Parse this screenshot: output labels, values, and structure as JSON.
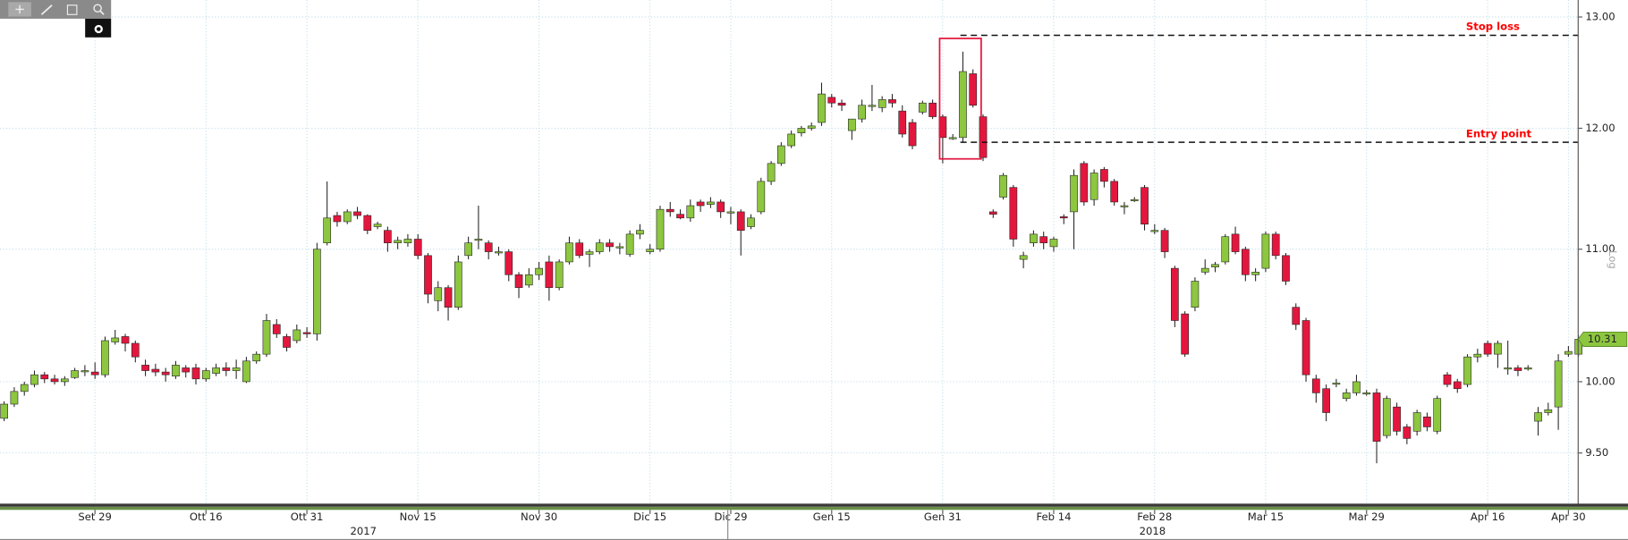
{
  "chart_data": {
    "type": "candlestick",
    "log_scale": true,
    "scale_label": "Log",
    "grid": true,
    "up_color": "#8dc63f",
    "down_color": "#e3173e",
    "annotation_color": "#ff0000",
    "ylim": [
      9.16,
      13.16
    ],
    "yticks": [
      {
        "value": 9.5,
        "label": "9.50"
      },
      {
        "value": 10,
        "label": "10.00"
      },
      {
        "value": 11,
        "label": "11.00"
      },
      {
        "value": 12,
        "label": "12.00"
      },
      {
        "value": 13,
        "label": "13.00"
      }
    ],
    "years": [
      "2017",
      "2018"
    ],
    "annotations": [
      {
        "text": "Stop loss",
        "value": 12.83
      },
      {
        "text": "Entry point",
        "value": 11.88
      }
    ],
    "categories": [
      null,
      null,
      null,
      null,
      null,
      null,
      null,
      null,
      null,
      "Set 29",
      null,
      null,
      null,
      null,
      null,
      null,
      null,
      null,
      null,
      null,
      "Ott 16",
      null,
      null,
      null,
      null,
      null,
      null,
      null,
      null,
      null,
      "Ott 31",
      null,
      null,
      null,
      null,
      null,
      null,
      null,
      null,
      null,
      null,
      "Nov 15",
      null,
      null,
      null,
      null,
      null,
      null,
      null,
      null,
      null,
      null,
      null,
      "Nov 30",
      null,
      null,
      null,
      null,
      null,
      null,
      null,
      null,
      null,
      null,
      "Dic 15",
      null,
      null,
      null,
      null,
      null,
      null,
      null,
      "Dic 29",
      null,
      null,
      null,
      null,
      null,
      null,
      null,
      null,
      null,
      "Gen 15",
      null,
      null,
      null,
      null,
      null,
      null,
      null,
      null,
      null,
      null,
      "Gen 31",
      null,
      null,
      null,
      null,
      null,
      null,
      null,
      null,
      null,
      null,
      "Feb 14",
      null,
      null,
      null,
      null,
      null,
      null,
      null,
      null,
      null,
      "Feb 28",
      null,
      null,
      null,
      null,
      null,
      null,
      null,
      null,
      null,
      null,
      "Mar 15",
      null,
      null,
      null,
      null,
      null,
      null,
      null,
      null,
      null,
      "Mar 29",
      null,
      null,
      null,
      null,
      null,
      null,
      null,
      null,
      null,
      null,
      null,
      "Apr 16",
      null,
      null,
      null,
      null,
      null,
      null,
      null,
      "Apr 30",
      null
    ],
    "open": [
      9.74,
      9.84,
      9.93,
      9.98,
      10.05,
      10.02,
      10.0,
      10.03,
      10.08,
      10.07,
      10.05,
      10.29,
      10.33,
      10.28,
      10.12,
      10.09,
      10.07,
      10.04,
      10.1,
      10.1,
      10.02,
      10.06,
      10.1,
      10.08,
      10.0,
      10.15,
      10.2,
      10.42,
      10.33,
      10.3,
      10.36,
      10.35,
      11.05,
      11.27,
      11.22,
      11.3,
      11.27,
      11.18,
      11.15,
      11.05,
      11.05,
      11.08,
      10.95,
      10.6,
      10.7,
      10.55,
      10.95,
      11.08,
      11.05,
      10.97,
      10.98,
      10.8,
      10.72,
      10.8,
      10.9,
      10.7,
      10.9,
      11.05,
      10.96,
      10.98,
      11.05,
      11.02,
      10.96,
      11.12,
      10.98,
      11.0,
      11.32,
      11.28,
      11.25,
      11.38,
      11.36,
      11.38,
      11.3,
      11.3,
      11.18,
      11.3,
      11.55,
      11.7,
      11.85,
      11.96,
      12.0,
      12.05,
      12.27,
      12.22,
      11.98,
      12.08,
      12.2,
      12.18,
      12.25,
      12.15,
      12.05,
      12.14,
      12.22,
      12.1,
      11.92,
      11.92,
      12.48,
      12.1,
      11.3,
      11.42,
      11.5,
      10.92,
      11.05,
      11.1,
      11.02,
      11.26,
      11.3,
      11.7,
      11.4,
      11.65,
      11.55,
      11.34,
      11.4,
      11.5,
      11.15,
      11.15,
      10.85,
      10.5,
      10.55,
      10.82,
      10.86,
      10.9,
      11.12,
      11.0,
      10.8,
      10.85,
      11.12,
      10.95,
      10.55,
      10.45,
      10.02,
      9.95,
      9.99,
      9.88,
      9.92,
      9.92,
      9.92,
      9.62,
      9.82,
      9.68,
      9.65,
      9.75,
      9.65,
      10.05,
      10.0,
      9.98,
      10.18,
      10.28,
      10.2,
      10.1,
      10.1,
      10.1,
      9.72,
      9.78,
      9.82,
      10.2,
      10.2
    ],
    "high": [
      9.86,
      9.96,
      10.0,
      10.08,
      10.07,
      10.05,
      10.04,
      10.1,
      10.12,
      10.14,
      10.33,
      10.38,
      10.35,
      10.3,
      10.16,
      10.13,
      10.1,
      10.15,
      10.12,
      10.13,
      10.1,
      10.13,
      10.14,
      10.16,
      10.18,
      10.22,
      10.5,
      10.46,
      10.35,
      10.42,
      10.4,
      11.05,
      11.55,
      11.3,
      11.32,
      11.34,
      11.28,
      11.22,
      11.18,
      11.1,
      11.12,
      11.12,
      10.97,
      10.75,
      10.72,
      10.95,
      11.1,
      11.35,
      11.07,
      11.02,
      11.0,
      10.82,
      10.85,
      10.9,
      10.95,
      10.92,
      11.1,
      11.08,
      11.0,
      11.08,
      11.08,
      11.05,
      11.15,
      11.2,
      11.04,
      11.35,
      11.38,
      11.32,
      11.4,
      11.4,
      11.42,
      11.4,
      11.34,
      11.32,
      11.28,
      11.58,
      11.72,
      11.88,
      11.98,
      12.02,
      12.05,
      12.4,
      12.3,
      12.25,
      12.08,
      12.25,
      12.38,
      12.28,
      12.3,
      12.2,
      12.08,
      12.24,
      12.25,
      12.12,
      11.95,
      12.68,
      12.52,
      12.12,
      11.32,
      11.62,
      11.52,
      10.98,
      11.15,
      11.14,
      11.1,
      11.28,
      11.65,
      11.72,
      11.65,
      11.67,
      11.57,
      11.38,
      11.42,
      11.52,
      11.2,
      11.17,
      10.87,
      10.52,
      10.78,
      10.92,
      10.9,
      11.12,
      11.18,
      11.02,
      10.85,
      11.14,
      11.14,
      10.97,
      10.58,
      10.47,
      10.05,
      9.98,
      10.02,
      9.95,
      10.05,
      9.94,
      9.95,
      9.9,
      9.85,
      9.7,
      9.8,
      9.78,
      9.9,
      10.07,
      10.02,
      10.2,
      10.24,
      10.3,
      10.3,
      10.3,
      10.12,
      10.12,
      9.82,
      9.85,
      10.2,
      10.26,
      10.34
    ],
    "low": [
      9.72,
      9.82,
      9.9,
      9.96,
      9.99,
      9.98,
      9.97,
      10.02,
      10.04,
      10.02,
      10.03,
      10.27,
      10.22,
      10.14,
      10.04,
      10.04,
      10.0,
      10.02,
      10.03,
      9.98,
      10.0,
      10.04,
      10.04,
      10.02,
      9.99,
      10.13,
      10.18,
      10.32,
      10.22,
      10.28,
      10.32,
      10.3,
      11.03,
      11.18,
      11.2,
      11.24,
      11.12,
      11.16,
      10.98,
      11.0,
      11.02,
      10.92,
      10.58,
      10.52,
      10.45,
      10.53,
      10.92,
      11.0,
      10.92,
      10.95,
      10.75,
      10.62,
      10.7,
      10.76,
      10.6,
      10.68,
      10.88,
      10.93,
      10.86,
      10.96,
      10.98,
      10.96,
      10.94,
      11.08,
      10.96,
      10.98,
      11.26,
      11.24,
      11.22,
      11.3,
      11.33,
      11.25,
      11.2,
      10.95,
      11.16,
      11.28,
      11.52,
      11.68,
      11.83,
      11.93,
      11.98,
      12.02,
      12.18,
      12.15,
      11.9,
      12.05,
      12.15,
      12.14,
      12.18,
      11.92,
      11.82,
      12.12,
      12.08,
      11.7,
      11.9,
      11.88,
      12.18,
      11.72,
      11.25,
      11.4,
      11.02,
      10.85,
      11.02,
      11.0,
      10.98,
      11.2,
      11.0,
      11.35,
      11.35,
      11.5,
      11.35,
      11.28,
      11.38,
      11.15,
      11.12,
      10.93,
      10.4,
      10.18,
      10.52,
      10.8,
      10.82,
      10.88,
      10.96,
      10.75,
      10.75,
      10.82,
      10.92,
      10.72,
      10.38,
      10.0,
      9.85,
      9.72,
      9.96,
      9.86,
      9.9,
      9.9,
      9.43,
      9.6,
      9.62,
      9.56,
      9.62,
      9.65,
      9.63,
      9.96,
      9.92,
      9.96,
      10.14,
      10.18,
      10.1,
      10.05,
      10.04,
      10.08,
      9.62,
      9.76,
      9.66,
      10.18,
      10.18
    ],
    "close": [
      9.84,
      9.93,
      9.98,
      10.05,
      10.02,
      10.0,
      10.02,
      10.08,
      10.08,
      10.05,
      10.3,
      10.32,
      10.28,
      10.18,
      10.08,
      10.07,
      10.05,
      10.12,
      10.07,
      10.02,
      10.08,
      10.1,
      10.08,
      10.1,
      10.15,
      10.2,
      10.45,
      10.35,
      10.25,
      10.38,
      10.35,
      11.0,
      11.25,
      11.22,
      11.3,
      11.27,
      11.15,
      11.2,
      11.05,
      11.07,
      11.08,
      10.95,
      10.65,
      10.7,
      10.55,
      10.9,
      11.05,
      11.08,
      10.98,
      10.98,
      10.8,
      10.7,
      10.8,
      10.85,
      10.7,
      10.9,
      11.05,
      10.95,
      10.98,
      11.05,
      11.02,
      11.02,
      11.12,
      11.15,
      11.0,
      11.32,
      11.3,
      11.25,
      11.35,
      11.35,
      11.38,
      11.3,
      11.3,
      11.15,
      11.25,
      11.55,
      11.7,
      11.85,
      11.95,
      12.0,
      12.02,
      12.3,
      12.22,
      12.2,
      12.08,
      12.2,
      12.2,
      12.25,
      12.22,
      11.95,
      11.85,
      12.22,
      12.1,
      11.92,
      11.92,
      12.5,
      12.2,
      11.75,
      11.28,
      11.6,
      11.08,
      10.95,
      11.12,
      11.05,
      11.08,
      11.25,
      11.6,
      11.38,
      11.62,
      11.55,
      11.38,
      11.35,
      11.4,
      11.2,
      11.15,
      10.98,
      10.45,
      10.2,
      10.75,
      10.85,
      10.88,
      11.1,
      10.98,
      10.8,
      10.82,
      11.12,
      10.95,
      10.75,
      10.42,
      10.05,
      9.92,
      9.78,
      9.99,
      9.92,
      10.0,
      9.92,
      9.58,
      9.88,
      9.65,
      9.6,
      9.78,
      9.68,
      9.88,
      9.98,
      9.95,
      10.18,
      10.2,
      10.2,
      10.28,
      10.1,
      10.08,
      10.1,
      9.78,
      9.8,
      10.15,
      10.22,
      10.31
    ]
  }
}
